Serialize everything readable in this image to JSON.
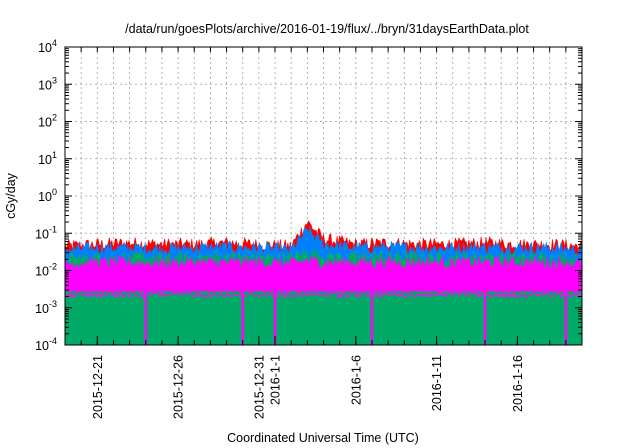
{
  "chart_data": {
    "type": "area",
    "title": "/data/run/goesPlots/archive/2016-01-19/flux/../bryn/31daysEarthData.plot",
    "xlabel": "Coordinated Universal Time (UTC)",
    "ylabel": "cGy/day",
    "yscale": "log",
    "ylim": [
      0.0001,
      10000
    ],
    "xlim": [
      "2015-12-19",
      "2016-01-20"
    ],
    "grid": true,
    "legend": "none",
    "x_ticks": [
      "2015-12-21",
      "2015-12-26",
      "2015-12-31",
      "2016-1-1",
      "2016-1-6",
      "2016-1-11",
      "2016-1-16"
    ],
    "y_ticks": [
      {
        "base": "10",
        "exp": "-4",
        "value": 0.0001
      },
      {
        "base": "10",
        "exp": "-3",
        "value": 0.001
      },
      {
        "base": "10",
        "exp": "-2",
        "value": 0.01
      },
      {
        "base": "10",
        "exp": "-1",
        "value": 0.1
      },
      {
        "base": "10",
        "exp": "0",
        "value": 1
      },
      {
        "base": "10",
        "exp": "1",
        "value": 10
      },
      {
        "base": "10",
        "exp": "2",
        "value": 100
      },
      {
        "base": "10",
        "exp": "3",
        "value": 1000
      },
      {
        "base": "10",
        "exp": "4",
        "value": 10000
      }
    ],
    "series": [
      {
        "color": "#ff0000",
        "x": [
          "2015-12-19",
          "2015-12-21",
          "2015-12-23",
          "2015-12-25",
          "2015-12-27",
          "2015-12-29",
          "2015-12-31",
          "2016-01-02",
          "2016-01-03",
          "2016-01-04",
          "2016-01-06",
          "2016-01-08",
          "2016-01-10",
          "2016-01-12",
          "2016-01-14",
          "2016-01-16",
          "2016-01-18",
          "2016-01-20"
        ],
        "values": [
          0.045,
          0.05,
          0.055,
          0.05,
          0.05,
          0.055,
          0.05,
          0.045,
          0.2,
          0.07,
          0.05,
          0.055,
          0.05,
          0.05,
          0.055,
          0.05,
          0.05,
          0.045
        ]
      },
      {
        "color": "#0080ff",
        "x": [
          "2015-12-19",
          "2015-12-21",
          "2015-12-23",
          "2015-12-25",
          "2015-12-27",
          "2015-12-29",
          "2015-12-31",
          "2016-01-02",
          "2016-01-03",
          "2016-01-04",
          "2016-01-06",
          "2016-01-08",
          "2016-01-10",
          "2016-01-12",
          "2016-01-14",
          "2016-01-16",
          "2016-01-18",
          "2016-01-20"
        ],
        "values": [
          0.035,
          0.04,
          0.04,
          0.038,
          0.04,
          0.042,
          0.04,
          0.035,
          0.12,
          0.05,
          0.04,
          0.042,
          0.04,
          0.04,
          0.042,
          0.04,
          0.04,
          0.035
        ]
      },
      {
        "color": "#00aa66",
        "x": [
          "2015-12-19",
          "2015-12-21",
          "2015-12-23",
          "2015-12-25",
          "2015-12-27",
          "2015-12-29",
          "2015-12-31",
          "2016-01-02",
          "2016-01-03",
          "2016-01-04",
          "2016-01-06",
          "2016-01-08",
          "2016-01-10",
          "2016-01-12",
          "2016-01-14",
          "2016-01-16",
          "2016-01-18",
          "2016-01-20"
        ],
        "values": [
          0.02,
          0.022,
          0.022,
          0.021,
          0.022,
          0.023,
          0.022,
          0.021,
          0.03,
          0.024,
          0.022,
          0.023,
          0.022,
          0.022,
          0.023,
          0.022,
          0.022,
          0.02
        ]
      },
      {
        "color": "#ff00ff",
        "x": [
          "2015-12-19",
          "2015-12-21",
          "2015-12-23",
          "2015-12-25",
          "2015-12-27",
          "2015-12-29",
          "2015-12-31",
          "2016-01-02",
          "2016-01-03",
          "2016-01-04",
          "2016-01-06",
          "2016-01-08",
          "2016-01-10",
          "2016-01-12",
          "2016-01-14",
          "2016-01-16",
          "2016-01-18",
          "2016-01-20"
        ],
        "values": [
          0.015,
          0.016,
          0.016,
          0.015,
          0.016,
          0.016,
          0.016,
          0.015,
          0.018,
          0.016,
          0.016,
          0.016,
          0.016,
          0.016,
          0.016,
          0.016,
          0.016,
          0.015
        ],
        "floor": 0.0028,
        "dropouts": [
          "2015-12-24",
          "2015-12-30",
          "2016-01-01",
          "2016-01-07",
          "2016-01-14",
          "2016-01-19"
        ]
      }
    ]
  }
}
